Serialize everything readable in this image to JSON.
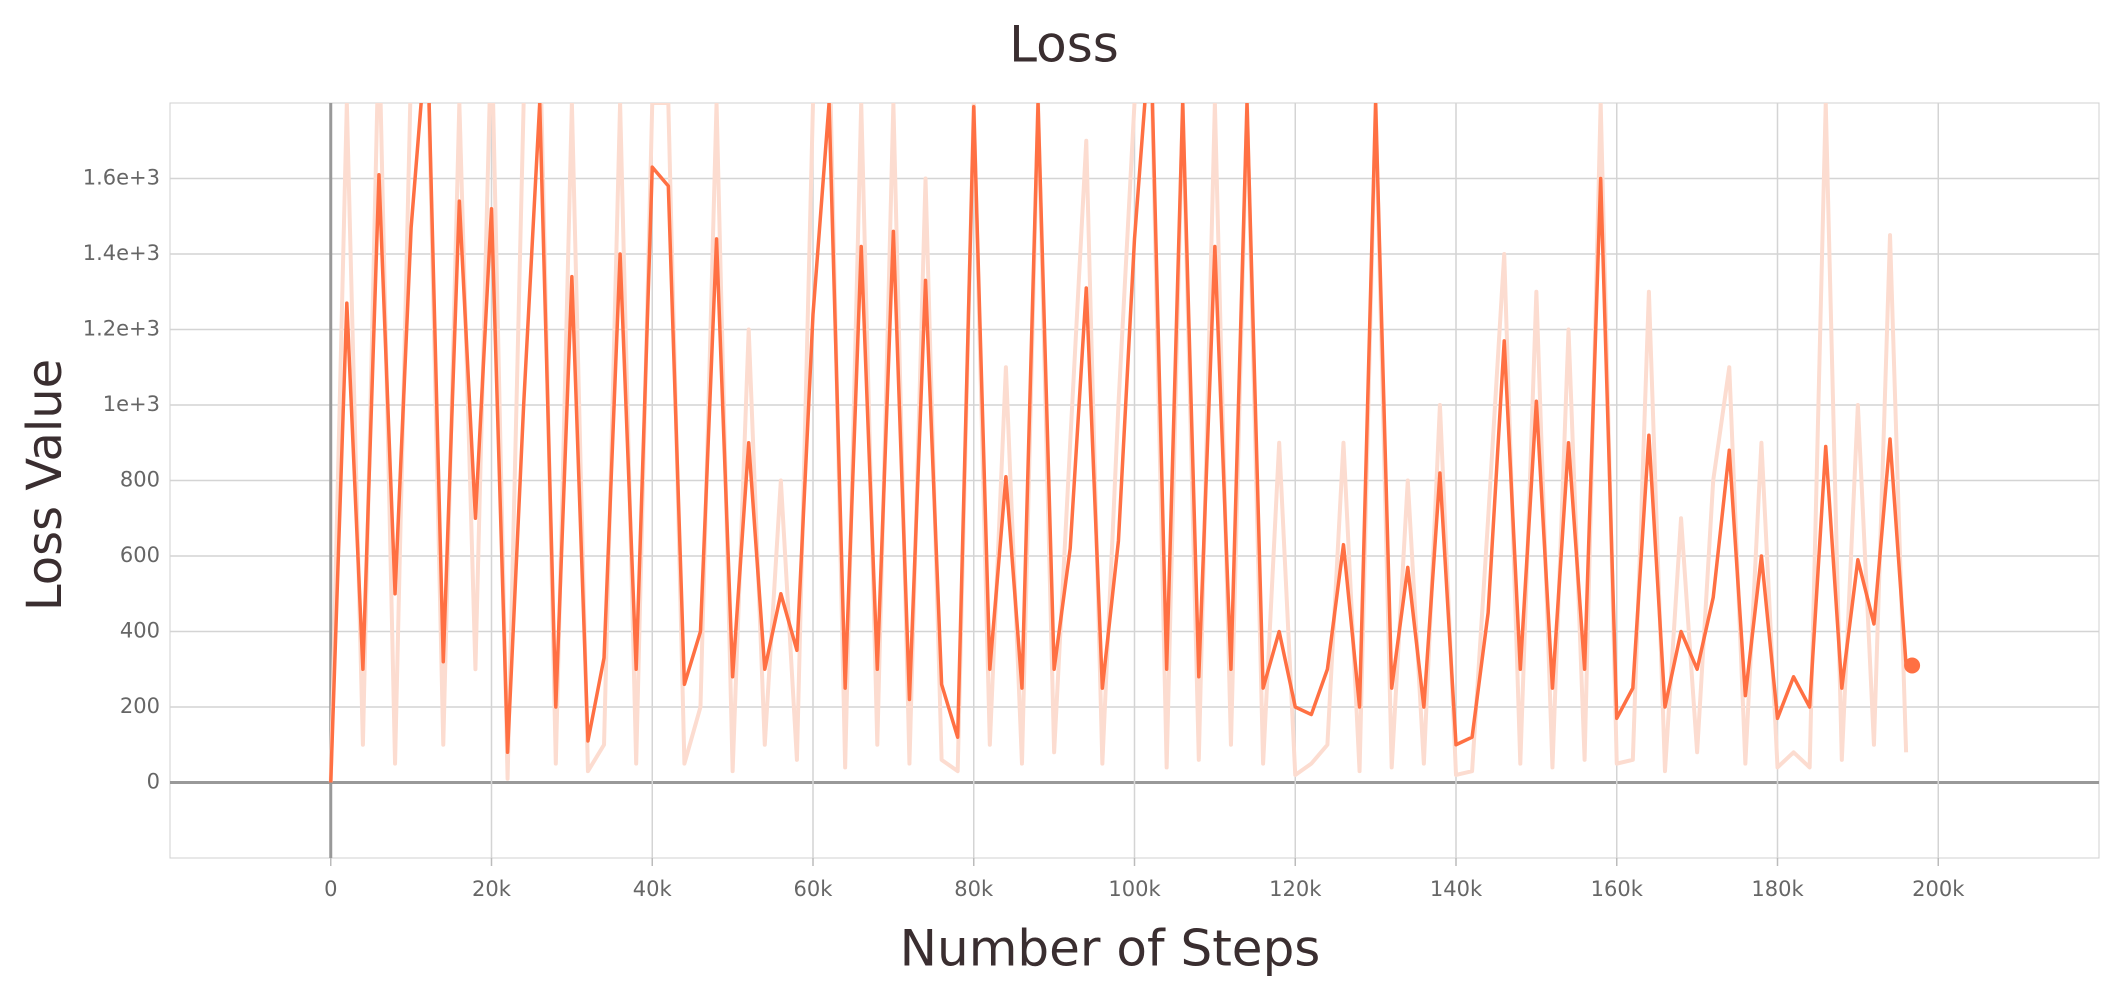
{
  "chart_data": {
    "type": "line",
    "title": "Loss",
    "x_label": "Number of Steps",
    "y_label": "Loss Value",
    "x": [
      0,
      2000,
      4000,
      6000,
      8000,
      10000,
      12000,
      14000,
      16000,
      18000,
      20000,
      22000,
      24000,
      26000,
      28000,
      30000,
      32000,
      34000,
      36000,
      38000,
      40000,
      42000,
      44000,
      46000,
      48000,
      50000,
      52000,
      54000,
      56000,
      58000,
      60000,
      62000,
      64000,
      66000,
      68000,
      70000,
      72000,
      74000,
      76000,
      78000,
      80000,
      82000,
      84000,
      86000,
      88000,
      90000,
      92000,
      94000,
      96000,
      98000,
      100000,
      102000,
      104000,
      106000,
      108000,
      110000,
      112000,
      114000,
      116000,
      118000,
      120000,
      122000,
      124000,
      126000,
      128000,
      130000,
      132000,
      134000,
      136000,
      138000,
      140000,
      142000,
      144000,
      146000,
      148000,
      150000,
      152000,
      154000,
      156000,
      158000,
      160000,
      162000,
      164000,
      166000,
      168000,
      170000,
      172000,
      174000,
      176000,
      178000,
      180000,
      182000,
      184000,
      186000,
      188000,
      190000,
      192000,
      194000,
      196000
    ],
    "series": [
      {
        "color": "#fcdcd0",
        "values": [
          0,
          1800,
          100,
          2000,
          50,
          1900,
          2000,
          100,
          1800,
          300,
          2000,
          10,
          1800,
          2000,
          50,
          1800,
          30,
          100,
          1800,
          50,
          1800,
          1800,
          50,
          200,
          1800,
          30,
          1200,
          100,
          800,
          60,
          1800,
          2000,
          40,
          1800,
          100,
          1800,
          50,
          1600,
          60,
          30,
          1800,
          100,
          1100,
          50,
          1800,
          80,
          900,
          1700,
          50,
          1000,
          1800,
          2000,
          40,
          1800,
          60,
          1800,
          100,
          1800,
          50,
          900,
          20,
          50,
          100,
          900,
          30,
          1800,
          40,
          800,
          50,
          1000,
          20,
          30,
          700,
          1400,
          50,
          1300,
          40,
          1200,
          60,
          1800,
          50,
          60,
          1300,
          30,
          700,
          80,
          800,
          1100,
          50,
          900,
          40,
          80,
          40,
          1800,
          60,
          1000,
          100,
          1450,
          80
        ]
      },
      {
        "color": "#ff7043",
        "values": [
          0,
          1270,
          300,
          1610,
          500,
          1470,
          2000,
          320,
          1540,
          700,
          1520,
          80,
          1000,
          1800,
          200,
          1340,
          110,
          330,
          1400,
          300,
          1630,
          1580,
          260,
          400,
          1440,
          280,
          900,
          300,
          500,
          350,
          1240,
          1800,
          250,
          1420,
          300,
          1460,
          220,
          1330,
          260,
          120,
          1790,
          300,
          810,
          250,
          1800,
          300,
          620,
          1310,
          250,
          640,
          1440,
          2000,
          300,
          1800,
          280,
          1420,
          300,
          1800,
          250,
          400,
          200,
          180,
          300,
          630,
          200,
          1800,
          250,
          570,
          200,
          820,
          100,
          120,
          450,
          1170,
          300,
          1010,
          250,
          900,
          300,
          1600,
          170,
          250,
          920,
          200,
          400,
          300,
          490,
          880,
          230,
          600,
          170,
          280,
          200,
          890,
          250,
          590,
          420,
          910,
          310
        ]
      }
    ],
    "xlim": [
      -20000,
      220000
    ],
    "ylim": [
      -200,
      1800
    ],
    "xticks": [
      0,
      {
        "value": 20000,
        "label": "20k"
      },
      {
        "value": 40000,
        "label": "40k"
      },
      {
        "value": 60000,
        "label": "60k"
      },
      {
        "value": 80000,
        "label": "80k"
      },
      {
        "value": 100000,
        "label": "100k"
      },
      {
        "value": 120000,
        "label": "120k"
      },
      {
        "value": 140000,
        "label": "140k"
      },
      {
        "value": 160000,
        "label": "160k"
      },
      {
        "value": 180000,
        "label": "180k"
      },
      {
        "value": 200000,
        "label": "200k"
      }
    ],
    "yticks": [
      0,
      200,
      400,
      600,
      800,
      {
        "value": 1000,
        "label": "1e+3"
      },
      {
        "value": 1200,
        "label": "1.2e+3"
      },
      {
        "value": 1400,
        "label": "1.4e+3"
      },
      {
        "value": 1600,
        "label": "1.6e+3"
      }
    ],
    "grid": true
  }
}
